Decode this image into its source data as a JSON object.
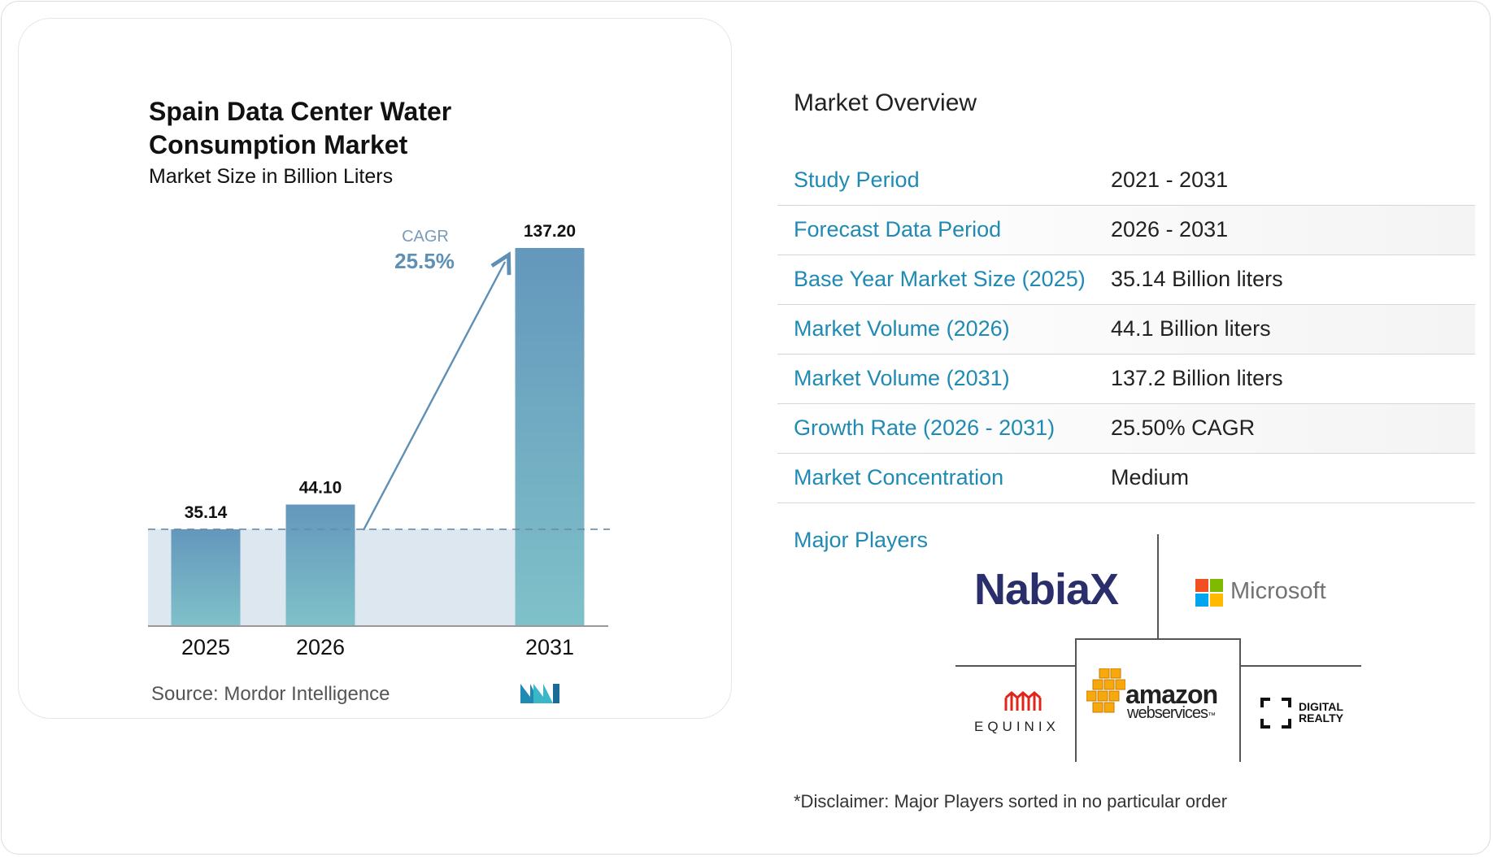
{
  "chart_data": {
    "type": "bar",
    "title": "Spain Data Center Water Consumption Market",
    "subtitle": "Market Size in Billion Liters",
    "categories": [
      "2025",
      "2026",
      "2031"
    ],
    "values": [
      35.14,
      44.1,
      137.2
    ],
    "value_labels": [
      "35.14",
      "44.10",
      "137.20"
    ],
    "ylim": [
      0,
      137.2
    ],
    "grid": false,
    "reference_line_value": 35.14,
    "cagr_label": "CAGR",
    "cagr_value": "25.5%",
    "bar_color_top": "#6497bc",
    "bar_color_bottom": "#7fc1c9"
  },
  "source": {
    "label": "Source:",
    "name": "Mordor Intelligence"
  },
  "overview": {
    "title": "Market Overview",
    "rows": [
      {
        "label": "Study Period",
        "value": "2021 - 2031"
      },
      {
        "label": "Forecast Data Period",
        "value": "2026 - 2031"
      },
      {
        "label": "Base Year Market Size (2025)",
        "value": "35.14 Billion liters"
      },
      {
        "label": "Market Volume (2026)",
        "value": "44.1 Billion liters"
      },
      {
        "label": "Market Volume (2031)",
        "value": "137.2 Billion liters"
      },
      {
        "label": "Growth Rate (2026 - 2031)",
        "value": "25.50% CAGR"
      },
      {
        "label": "Market Concentration",
        "value": "Medium"
      }
    ]
  },
  "players": {
    "title": "Major Players",
    "nabiax": "NabiaX",
    "microsoft": "Microsoft",
    "equinix": "EQUINIX",
    "amazon_top": "amazon",
    "amazon_bottom": "webservices",
    "amazon_tm": "™",
    "digital_realty_1": "DIGITAL",
    "digital_realty_2": "REALTY"
  },
  "disclaimer": "*Disclaimer: Major Players sorted in no particular order",
  "colors": {
    "accent": "#1f8ab3",
    "bar_top": "#6497bc",
    "bar_bottom": "#7fc1c9",
    "area": "#dde7f0",
    "arrow": "#5e8fb5"
  }
}
